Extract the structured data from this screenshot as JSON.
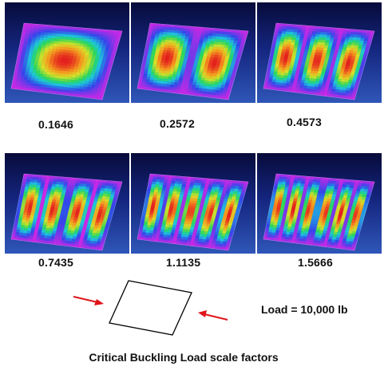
{
  "mode_shapes": [
    {
      "factor": "0.1646",
      "half_waves_x": 1,
      "half_waves_y": 1
    },
    {
      "factor": "0.2572",
      "half_waves_x": 2,
      "half_waves_y": 1
    },
    {
      "factor": "0.4573",
      "half_waves_x": 3,
      "half_waves_y": 1
    },
    {
      "factor": "0.7435",
      "half_waves_x": 4,
      "half_waves_y": 1
    },
    {
      "factor": "1.1135",
      "half_waves_x": 5,
      "half_waves_y": 1
    },
    {
      "factor": "1.5666",
      "half_waves_x": 6,
      "half_waves_y": 1
    }
  ],
  "load_label": "Load = 10,000 lb",
  "caption": "Critical Buckling Load scale factors",
  "colors": {
    "arrow": "#e0151c",
    "background_top": "#070b3a",
    "background_bottom": "#2f56b8",
    "outline": "#000000"
  }
}
